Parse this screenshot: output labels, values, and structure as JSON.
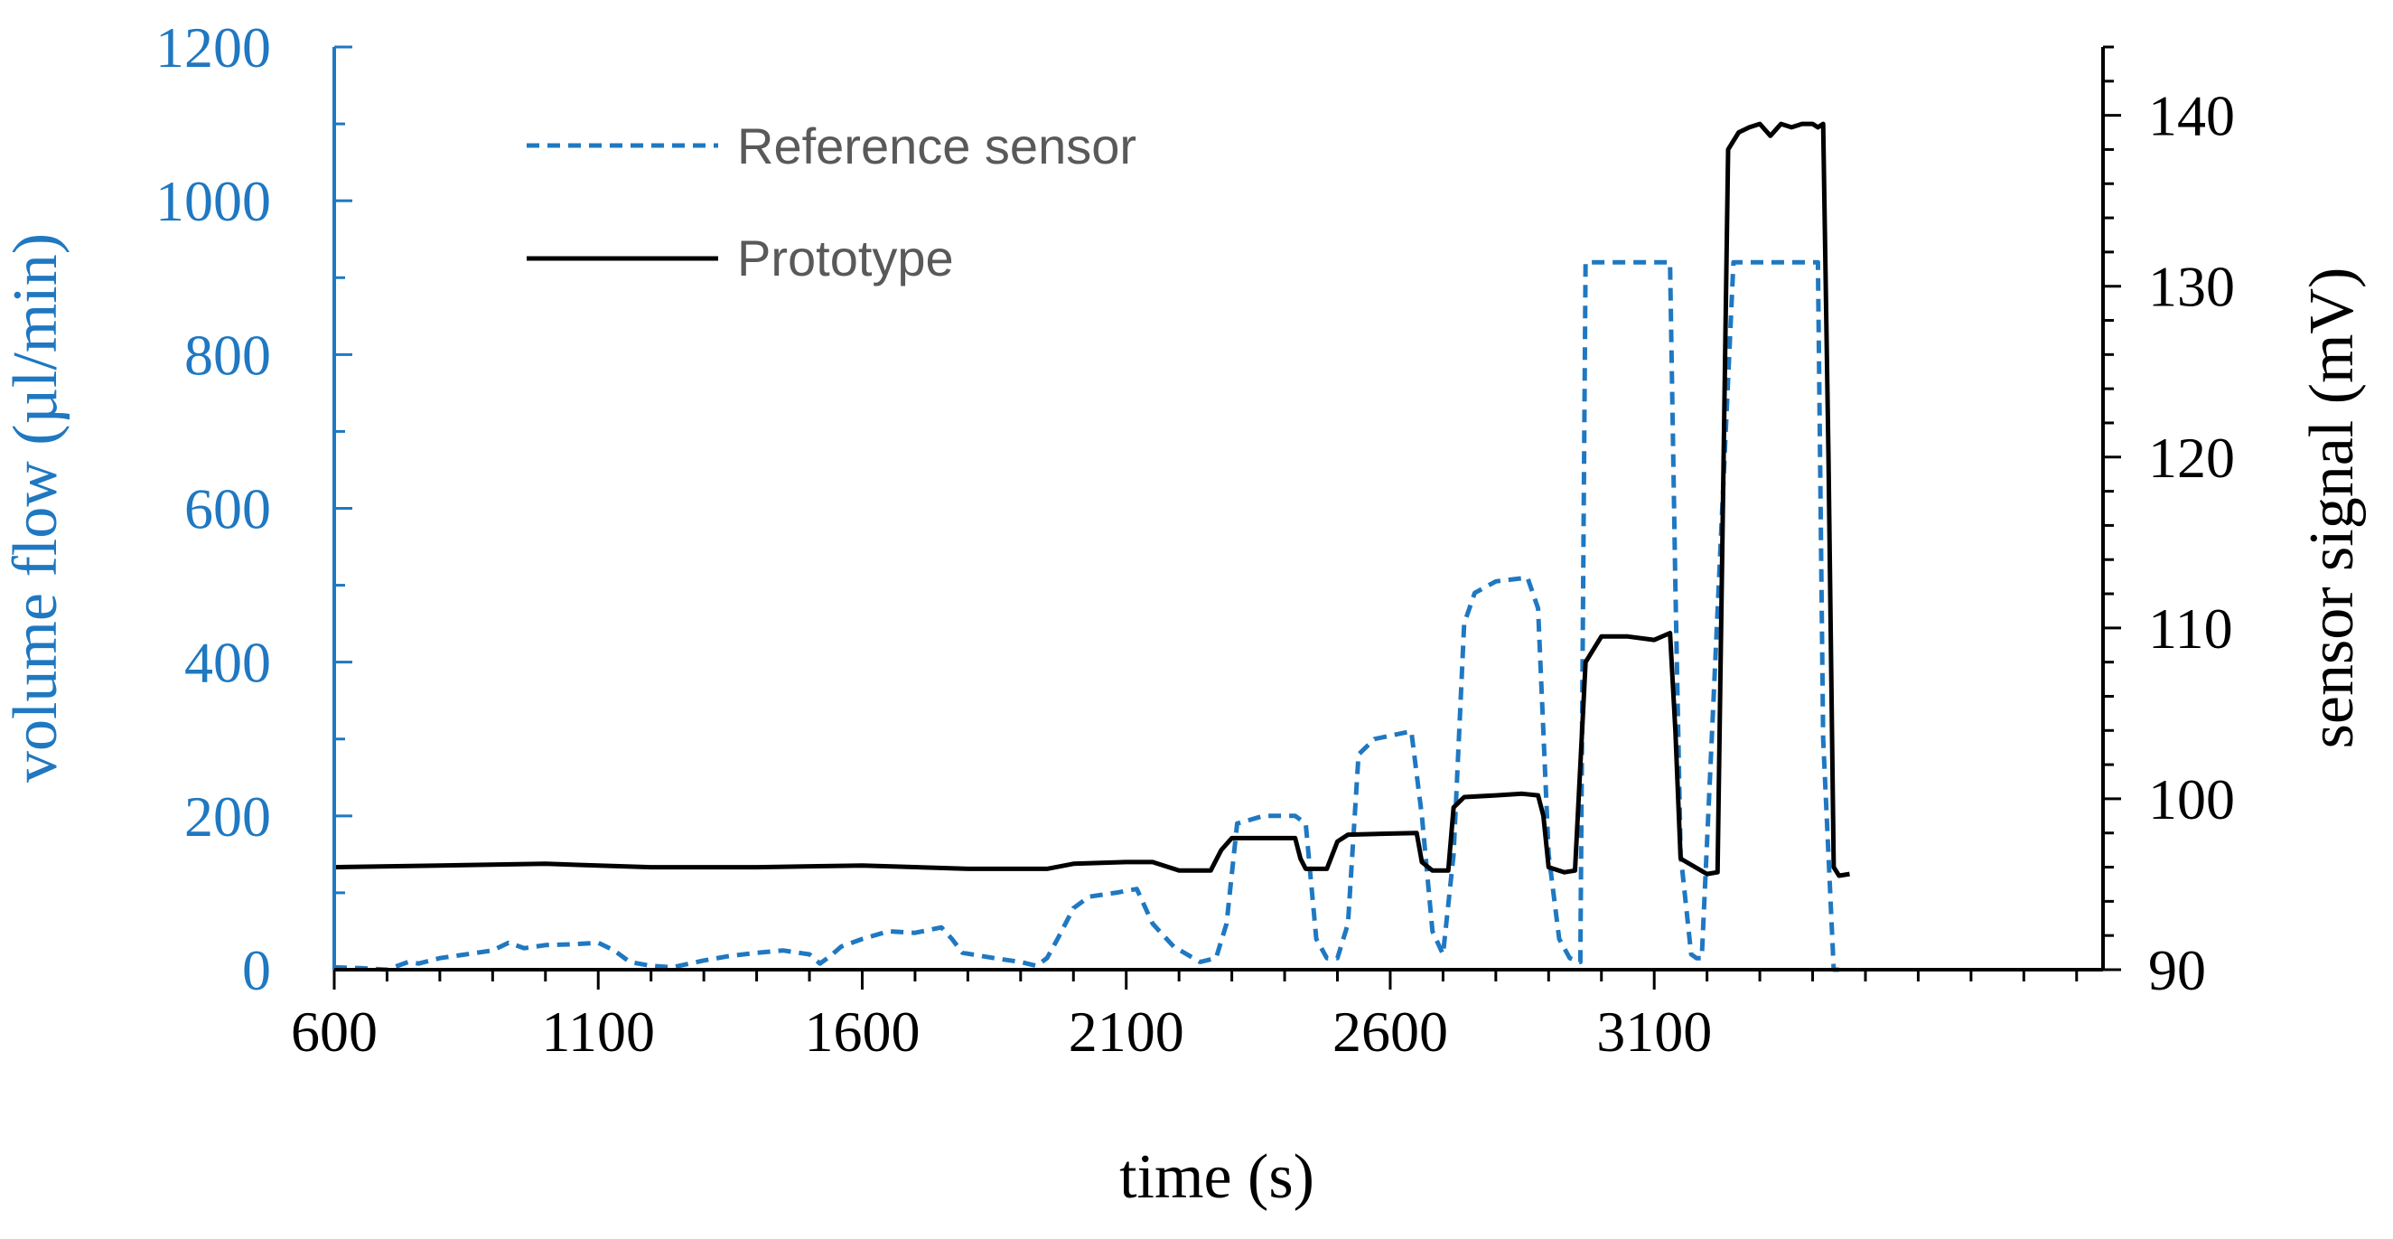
{
  "chart_data": {
    "type": "line",
    "xlabel": "time (s)",
    "ylabel_left": "volume flow (µl/min)",
    "ylabel_right": "sensor signal (mV)",
    "xlim": [
      600,
      3950
    ],
    "ylim_left": [
      0,
      1200
    ],
    "ylim_right": [
      90,
      144
    ],
    "x_ticks": [
      600,
      1100,
      1600,
      2100,
      2600,
      3100
    ],
    "y_left_ticks": [
      0,
      200,
      400,
      600,
      800,
      1000,
      1200
    ],
    "y_right_ticks": [
      90,
      100,
      110,
      120,
      130,
      140
    ],
    "legend": {
      "position": "top-left",
      "entries": [
        "Reference sensor",
        "Prototype"
      ]
    },
    "colors": {
      "reference": "#1f78c1",
      "prototype": "#000000",
      "left_axis": "#1f78c1"
    },
    "series": [
      {
        "name": "Reference sensor",
        "axis": "left",
        "style": "dashed",
        "x": [
          600,
          650,
          700,
          740,
          760,
          800,
          850,
          900,
          930,
          960,
          1000,
          1050,
          1100,
          1130,
          1160,
          1200,
          1240,
          1300,
          1350,
          1400,
          1450,
          1500,
          1520,
          1540,
          1560,
          1600,
          1650,
          1700,
          1750,
          1770,
          1790,
          1850,
          1900,
          1930,
          1950,
          1970,
          2000,
          2030,
          2080,
          2120,
          2150,
          2190,
          2240,
          2270,
          2290,
          2310,
          2360,
          2420,
          2440,
          2460,
          2480,
          2500,
          2520,
          2540,
          2570,
          2640,
          2660,
          2680,
          2700,
          2720,
          2740,
          2760,
          2800,
          2860,
          2880,
          2900,
          2920,
          2940,
          2960,
          2970,
          3030,
          3130,
          3140,
          3150,
          3170,
          3180,
          3190,
          3250,
          3400,
          3410,
          3420,
          3440,
          3450
        ],
        "y": [
          3,
          2,
          0,
          10,
          8,
          15,
          20,
          25,
          35,
          28,
          32,
          33,
          35,
          25,
          10,
          5,
          3,
          12,
          18,
          22,
          25,
          20,
          8,
          18,
          30,
          40,
          50,
          48,
          55,
          40,
          22,
          15,
          10,
          5,
          15,
          40,
          80,
          95,
          100,
          105,
          60,
          30,
          10,
          15,
          60,
          190,
          200,
          200,
          190,
          40,
          15,
          15,
          60,
          280,
          300,
          310,
          200,
          50,
          20,
          150,
          450,
          490,
          505,
          510,
          470,
          150,
          40,
          15,
          10,
          920,
          920,
          920,
          500,
          150,
          20,
          15,
          15,
          920,
          920,
          920,
          300,
          0,
          0
        ]
      },
      {
        "name": "Prototype",
        "axis": "right",
        "style": "solid",
        "x": [
          600,
          800,
          1000,
          1200,
          1400,
          1600,
          1800,
          1950,
          2000,
          2100,
          2150,
          2200,
          2260,
          2280,
          2300,
          2420,
          2430,
          2440,
          2480,
          2500,
          2520,
          2650,
          2660,
          2680,
          2710,
          2720,
          2740,
          2800,
          2850,
          2880,
          2890,
          2900,
          2930,
          2950,
          2970,
          3000,
          3050,
          3100,
          3130,
          3140,
          3150,
          3200,
          3220,
          3240,
          3260,
          3280,
          3300,
          3320,
          3340,
          3360,
          3380,
          3400,
          3410,
          3420,
          3430,
          3440,
          3450,
          3470
        ],
        "y": [
          96,
          96.1,
          96.2,
          96,
          96,
          96.1,
          95.9,
          95.9,
          96.2,
          96.3,
          96.3,
          95.8,
          95.8,
          97,
          97.7,
          97.7,
          96.5,
          95.9,
          95.9,
          97.5,
          97.9,
          98,
          96.3,
          95.8,
          95.8,
          99.5,
          100.1,
          100.2,
          100.3,
          100.2,
          99,
          96,
          95.7,
          95.8,
          108,
          109.5,
          109.5,
          109.3,
          109.7,
          104,
          96.5,
          95.6,
          95.7,
          138,
          139,
          139.3,
          139.5,
          138.8,
          139.5,
          139.3,
          139.5,
          139.5,
          139.3,
          139.5,
          120,
          96,
          95.5,
          95.6
        ]
      }
    ]
  }
}
